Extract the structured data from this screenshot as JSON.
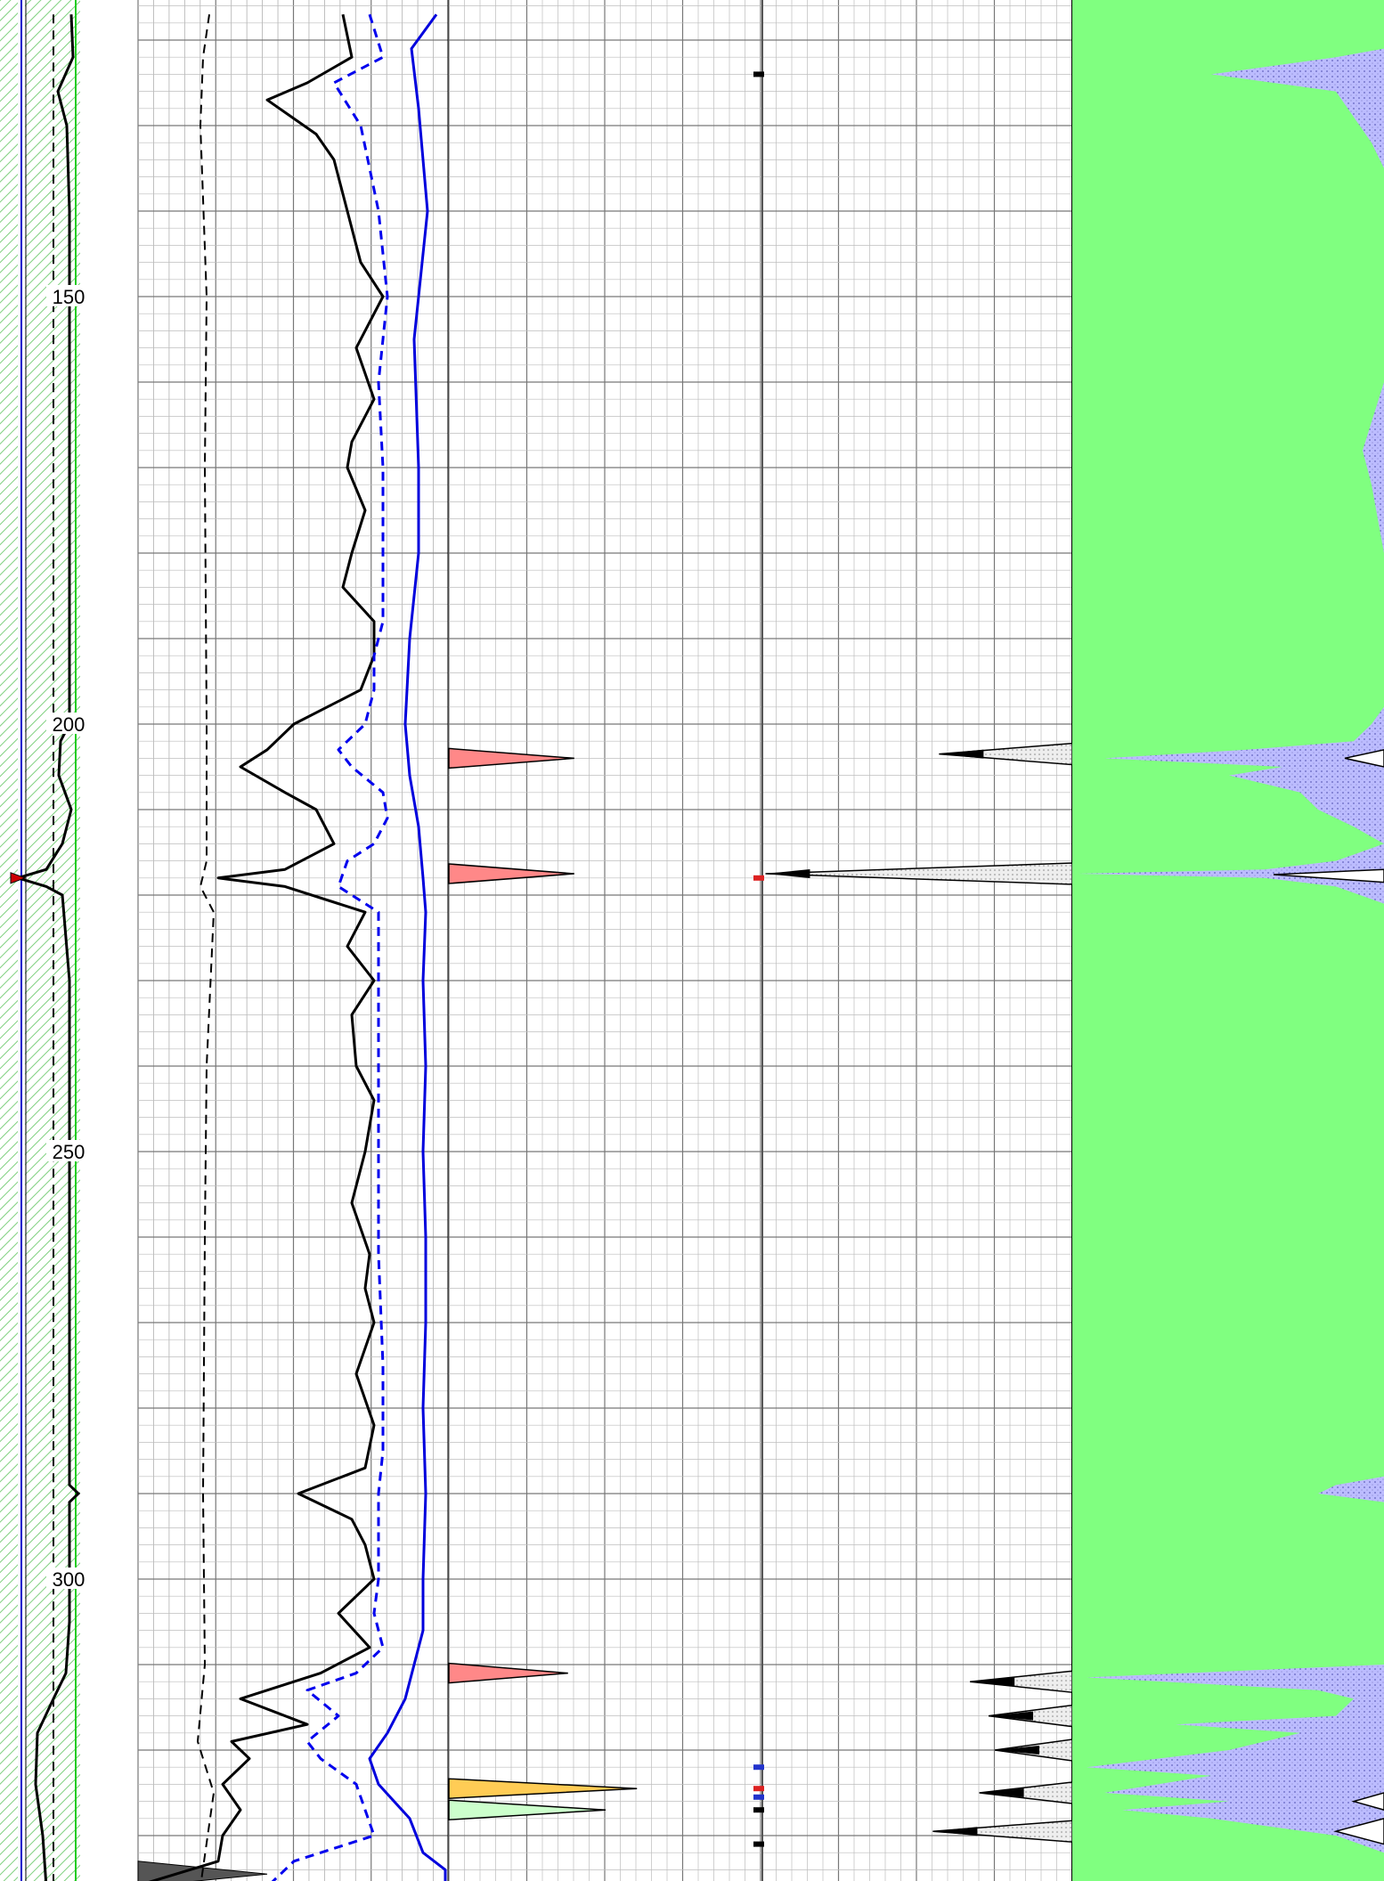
{
  "chart_data": {
    "type": "well-log",
    "depth_axis": {
      "range": [
        117,
        336
      ],
      "tick_labels": [
        "150",
        "200",
        "250",
        "300"
      ],
      "tick_values": [
        150,
        200,
        250,
        300
      ]
    },
    "tracks": [
      {
        "name": "depth-track",
        "curves": [
          {
            "name": "caliper",
            "color": "#000000",
            "style": "solid",
            "points": [
              [
                117,
                80
              ],
              [
                122,
                82
              ],
              [
                126,
                65
              ],
              [
                130,
                75
              ],
              [
                140,
                78
              ],
              [
                160,
                78
              ],
              [
                180,
                78
              ],
              [
                200,
                78
              ],
              [
                202,
                68
              ],
              [
                206,
                66
              ],
              [
                210,
                80
              ],
              [
                214,
                70
              ],
              [
                217,
                52
              ],
              [
                218,
                20
              ],
              [
                219,
                52
              ],
              [
                220,
                70
              ],
              [
                230,
                78
              ],
              [
                250,
                78
              ],
              [
                289,
                78
              ],
              [
                290,
                88
              ],
              [
                291,
                78
              ],
              [
                305,
                78
              ],
              [
                311,
                74
              ],
              [
                314,
                60
              ],
              [
                318,
                42
              ],
              [
                324,
                40
              ],
              [
                330,
                48
              ],
              [
                336,
                52
              ]
            ]
          },
          {
            "name": "bit-size-dashed",
            "color": "#000000",
            "style": "dashed",
            "points": [
              [
                117,
                60
              ],
              [
                336,
                60
              ]
            ]
          }
        ],
        "flags": [
          {
            "depth": 218,
            "color": "#cc0000"
          }
        ]
      },
      {
        "name": "gamma-track",
        "curves": [
          {
            "name": "gr-black",
            "color": "#000000",
            "style": "solid",
            "points": [
              [
                117,
                385
              ],
              [
                122,
                395
              ],
              [
                125,
                345
              ],
              [
                127,
                300
              ],
              [
                131,
                355
              ],
              [
                134,
                375
              ],
              [
                138,
                385
              ],
              [
                142,
                395
              ],
              [
                146,
                405
              ],
              [
                150,
                430
              ],
              [
                156,
                400
              ],
              [
                162,
                420
              ],
              [
                167,
                395
              ],
              [
                170,
                390
              ],
              [
                175,
                410
              ],
              [
                180,
                395
              ],
              [
                184,
                385
              ],
              [
                188,
                420
              ],
              [
                192,
                420
              ],
              [
                196,
                405
              ],
              [
                200,
                330
              ],
              [
                203,
                300
              ],
              [
                205,
                270
              ],
              [
                208,
                320
              ],
              [
                210,
                355
              ],
              [
                214,
                375
              ],
              [
                217,
                320
              ],
              [
                218,
                245
              ],
              [
                219,
                320
              ],
              [
                222,
                410
              ],
              [
                226,
                390
              ],
              [
                230,
                420
              ],
              [
                234,
                395
              ],
              [
                240,
                400
              ],
              [
                244,
                420
              ],
              [
                250,
                410
              ],
              [
                256,
                395
              ],
              [
                262,
                415
              ],
              [
                266,
                410
              ],
              [
                270,
                420
              ],
              [
                276,
                400
              ],
              [
                282,
                420
              ],
              [
                287,
                410
              ],
              [
                290,
                335
              ],
              [
                293,
                395
              ],
              [
                296,
                410
              ],
              [
                300,
                420
              ],
              [
                304,
                380
              ],
              [
                308,
                415
              ],
              [
                311,
                360
              ],
              [
                314,
                270
              ],
              [
                317,
                345
              ],
              [
                319,
                260
              ],
              [
                321,
                280
              ],
              [
                324,
                250
              ],
              [
                327,
                270
              ],
              [
                330,
                250
              ],
              [
                333,
                245
              ],
              [
                336,
                150
              ]
            ]
          },
          {
            "name": "gr-dashed-blue",
            "color": "#0000ee",
            "style": "dashed",
            "points": [
              [
                117,
                415
              ],
              [
                122,
                430
              ],
              [
                125,
                375
              ],
              [
                130,
                405
              ],
              [
                140,
                425
              ],
              [
                150,
                435
              ],
              [
                160,
                425
              ],
              [
                170,
                430
              ],
              [
                180,
                430
              ],
              [
                188,
                430
              ],
              [
                192,
                420
              ],
              [
                196,
                420
              ],
              [
                200,
                410
              ],
              [
                203,
                380
              ],
              [
                205,
                395
              ],
              [
                208,
                430
              ],
              [
                211,
                435
              ],
              [
                214,
                420
              ],
              [
                216,
                390
              ],
              [
                219,
                380
              ],
              [
                222,
                425
              ],
              [
                230,
                425
              ],
              [
                240,
                425
              ],
              [
                250,
                425
              ],
              [
                262,
                425
              ],
              [
                275,
                430
              ],
              [
                285,
                430
              ],
              [
                290,
                425
              ],
              [
                296,
                425
              ],
              [
                300,
                425
              ],
              [
                304,
                420
              ],
              [
                308,
                430
              ],
              [
                311,
                400
              ],
              [
                313,
                345
              ],
              [
                316,
                380
              ],
              [
                319,
                345
              ],
              [
                321,
                360
              ],
              [
                324,
                400
              ],
              [
                327,
                410
              ],
              [
                330,
                420
              ],
              [
                333,
                330
              ],
              [
                336,
                300
              ]
            ]
          },
          {
            "name": "gr-solid-blue",
            "color": "#0000dd",
            "style": "solid",
            "points": [
              [
                117,
                490
              ],
              [
                121,
                462
              ],
              [
                128,
                470
              ],
              [
                140,
                480
              ],
              [
                155,
                465
              ],
              [
                170,
                470
              ],
              [
                180,
                470
              ],
              [
                190,
                460
              ],
              [
                200,
                455
              ],
              [
                206,
                460
              ],
              [
                212,
                470
              ],
              [
                218,
                475
              ],
              [
                222,
                478
              ],
              [
                230,
                475
              ],
              [
                240,
                478
              ],
              [
                250,
                475
              ],
              [
                260,
                478
              ],
              [
                270,
                478
              ],
              [
                280,
                475
              ],
              [
                290,
                478
              ],
              [
                300,
                475
              ],
              [
                306,
                475
              ],
              [
                310,
                465
              ],
              [
                314,
                455
              ],
              [
                318,
                435
              ],
              [
                321,
                415
              ],
              [
                324,
                425
              ],
              [
                328,
                460
              ],
              [
                332,
                475
              ],
              [
                334,
                500
              ],
              [
                336,
                500
              ]
            ]
          },
          {
            "name": "gr-left-dashed",
            "color": "#000000",
            "style": "dashed",
            "points": [
              [
                117,
                235
              ],
              [
                122,
                228
              ],
              [
                130,
                225
              ],
              [
                150,
                232
              ],
              [
                170,
                230
              ],
              [
                200,
                232
              ],
              [
                216,
                232
              ],
              [
                219,
                225
              ],
              [
                222,
                240
              ],
              [
                240,
                232
              ],
              [
                260,
                230
              ],
              [
                290,
                228
              ],
              [
                310,
                230
              ],
              [
                319,
                222
              ],
              [
                325,
                240
              ],
              [
                336,
                225
              ]
            ]
          }
        ],
        "fills": [
          {
            "depth_start": 333,
            "depth_end": 336,
            "color": "#555555"
          }
        ]
      },
      {
        "name": "resistivity-track",
        "spikes": [
          {
            "depth": 204,
            "amplitude": 0.4,
            "color": "#ff8888"
          },
          {
            "depth": 217.5,
            "amplitude": 0.4,
            "color": "#ff8888"
          },
          {
            "depth": 311,
            "amplitude": 0.38,
            "color": "#ff8888"
          },
          {
            "depth": 324.5,
            "amplitude": 0.6,
            "color": "#ffcc55"
          },
          {
            "depth": 327,
            "amplitude": 0.5,
            "color": "#ccffcc"
          }
        ],
        "markers": [
          {
            "depth": 124,
            "color": "#000000"
          },
          {
            "depth": 218,
            "color": "#dd2222"
          },
          {
            "depth": 322,
            "color": "#2233cc"
          },
          {
            "depth": 324.5,
            "color": "#dd2222"
          },
          {
            "depth": 325.5,
            "color": "#2233cc"
          },
          {
            "depth": 327,
            "color": "#000000"
          },
          {
            "depth": 331,
            "color": "#000000"
          }
        ],
        "right_spikes": [
          {
            "depth": 203.5,
            "amplitude": 0.43
          },
          {
            "depth": 217.5,
            "amplitude": 0.99
          },
          {
            "depth": 312,
            "amplitude": 0.33
          },
          {
            "depth": 316,
            "amplitude": 0.27
          },
          {
            "depth": 320,
            "amplitude": 0.25
          },
          {
            "depth": 325,
            "amplitude": 0.3
          },
          {
            "depth": 329.5,
            "amplitude": 0.45
          }
        ]
      },
      {
        "name": "lithology-track",
        "background_color": "#80ff80",
        "overlay_color": "#b8b8ff"
      }
    ]
  }
}
